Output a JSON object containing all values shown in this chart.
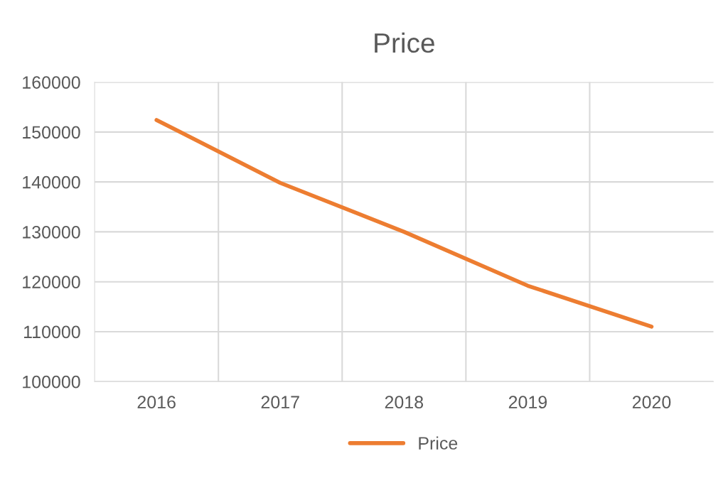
{
  "chart_data": {
    "type": "line",
    "title": "Price",
    "categories": [
      "2016",
      "2017",
      "2018",
      "2019",
      "2020"
    ],
    "series": [
      {
        "name": "Price",
        "color": "#ed7d31",
        "values": [
          152400,
          139800,
          130000,
          119200,
          111000
        ]
      }
    ],
    "ylim": [
      100000,
      160000
    ],
    "yticks": [
      100000,
      110000,
      120000,
      130000,
      140000,
      150000,
      160000
    ],
    "grid": true,
    "legend": "bottom",
    "marker": "none",
    "line_style": "solid"
  }
}
